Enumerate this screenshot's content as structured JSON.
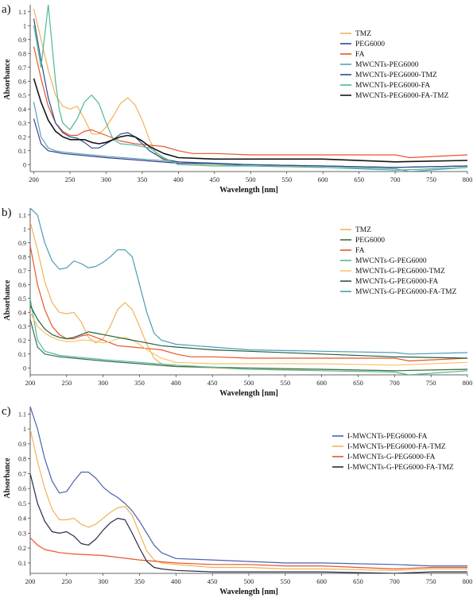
{
  "chart_data": [
    {
      "panel_label": "a)",
      "type": "line",
      "xlabel": "Wavelength [nm]",
      "ylabel": "Absorbance",
      "xlim": [
        195,
        800
      ],
      "ylim": [
        -0.05,
        1.15
      ],
      "xticks": [
        200,
        250,
        300,
        350,
        400,
        450,
        500,
        550,
        600,
        650,
        700,
        750,
        800
      ],
      "yticks": [
        0,
        0.1,
        0.2,
        0.3,
        0.4,
        0.5,
        0.6,
        0.7,
        0.8,
        0.9,
        1,
        1.1
      ],
      "ytick_labels": [
        "0",
        "0.1",
        "0.2",
        "0.3",
        "0.4",
        "0.5",
        "0.6",
        "0.7",
        "0.8",
        "0.9",
        "1",
        "1.1"
      ],
      "legend_position": "top-right",
      "series": [
        {
          "name": "TMZ",
          "color": "#f0b25a",
          "x": [
            200,
            210,
            220,
            230,
            240,
            250,
            260,
            270,
            280,
            290,
            300,
            310,
            320,
            330,
            340,
            350,
            360,
            370,
            380,
            400,
            450,
            500,
            600,
            700,
            800
          ],
          "y": [
            1.12,
            0.9,
            0.68,
            0.5,
            0.42,
            0.4,
            0.42,
            0.33,
            0.22,
            0.22,
            0.27,
            0.35,
            0.44,
            0.48,
            0.43,
            0.32,
            0.18,
            0.07,
            0.03,
            0.01,
            0.0,
            -0.01,
            -0.01,
            -0.02,
            -0.01
          ]
        },
        {
          "name": "PEG6000",
          "color": "#3a3f8f",
          "x": [
            200,
            210,
            220,
            230,
            240,
            260,
            300,
            350,
            400,
            500,
            600,
            700,
            800
          ],
          "y": [
            0.33,
            0.15,
            0.1,
            0.09,
            0.08,
            0.07,
            0.05,
            0.03,
            0.01,
            0.0,
            -0.01,
            -0.02,
            -0.01
          ]
        },
        {
          "name": "FA",
          "color": "#e8552b",
          "x": [
            200,
            210,
            220,
            230,
            240,
            250,
            260,
            270,
            280,
            290,
            300,
            320,
            340,
            360,
            380,
            400,
            420,
            450,
            500,
            600,
            700,
            720,
            800
          ],
          "y": [
            0.85,
            0.62,
            0.42,
            0.3,
            0.24,
            0.21,
            0.21,
            0.24,
            0.25,
            0.23,
            0.21,
            0.17,
            0.15,
            0.14,
            0.13,
            0.1,
            0.08,
            0.08,
            0.07,
            0.07,
            0.07,
            0.05,
            0.07
          ]
        },
        {
          "name": "MWCNTs-PEG6000",
          "color": "#5aa0b8",
          "x": [
            200,
            210,
            220,
            230,
            240,
            260,
            300,
            350,
            400,
            500,
            600,
            700,
            720,
            800
          ],
          "y": [
            0.45,
            0.2,
            0.12,
            0.1,
            0.09,
            0.08,
            0.06,
            0.04,
            0.02,
            -0.01,
            -0.02,
            -0.03,
            -0.05,
            -0.02
          ]
        },
        {
          "name": "MWCNTs-PEG6000-TMZ",
          "color": "#2b4d8c",
          "x": [
            200,
            210,
            220,
            230,
            240,
            250,
            260,
            270,
            280,
            290,
            300,
            310,
            320,
            330,
            340,
            350,
            360,
            380,
            400,
            450,
            500,
            600,
            700,
            800
          ],
          "y": [
            1.05,
            0.75,
            0.48,
            0.3,
            0.23,
            0.2,
            0.19,
            0.16,
            0.12,
            0.12,
            0.15,
            0.18,
            0.22,
            0.23,
            0.2,
            0.15,
            0.1,
            0.04,
            0.02,
            0.01,
            0.0,
            -0.01,
            -0.02,
            -0.01
          ]
        },
        {
          "name": "MWCNTs-PEG6000-FA",
          "color": "#4db89a",
          "x": [
            200,
            210,
            220,
            230,
            235,
            240,
            250,
            260,
            270,
            280,
            290,
            300,
            310,
            320,
            340,
            360,
            380,
            400,
            450,
            500,
            600,
            700,
            800
          ],
          "y": [
            1.0,
            0.7,
            1.15,
            0.6,
            0.4,
            0.3,
            0.25,
            0.33,
            0.45,
            0.5,
            0.44,
            0.3,
            0.18,
            0.15,
            0.14,
            0.12,
            0.05,
            0.0,
            -0.01,
            -0.01,
            -0.02,
            -0.04,
            -0.02
          ]
        },
        {
          "name": "MWCNTs-PEG6000-FA-TMZ",
          "color": "#151515",
          "x": [
            200,
            210,
            220,
            230,
            240,
            250,
            260,
            270,
            280,
            290,
            300,
            310,
            320,
            330,
            340,
            350,
            360,
            380,
            400,
            450,
            500,
            600,
            700,
            800
          ],
          "y": [
            0.62,
            0.45,
            0.32,
            0.24,
            0.2,
            0.18,
            0.18,
            0.18,
            0.16,
            0.15,
            0.16,
            0.18,
            0.2,
            0.21,
            0.2,
            0.17,
            0.13,
            0.08,
            0.05,
            0.04,
            0.04,
            0.04,
            0.02,
            0.03
          ]
        }
      ]
    },
    {
      "panel_label": "b)",
      "type": "line",
      "xlabel": "Wavelength [nm]",
      "ylabel": "Absorbance",
      "xlim": [
        200,
        800
      ],
      "ylim": [
        -0.05,
        1.15
      ],
      "xticks": [
        200,
        250,
        300,
        350,
        400,
        450,
        500,
        550,
        600,
        650,
        700,
        750,
        800
      ],
      "yticks": [
        0,
        0.1,
        0.2,
        0.3,
        0.4,
        0.5,
        0.6,
        0.7,
        0.8,
        0.9,
        1,
        1.1
      ],
      "ytick_labels": [
        "0",
        "0.1",
        "0.2",
        "0.3",
        "0.4",
        "0.5",
        "0.6",
        "0.7",
        "0.8",
        "0.9",
        "1",
        "1.1"
      ],
      "legend_position": "top-right",
      "series": [
        {
          "name": "TMZ",
          "color": "#f0b25a",
          "x": [
            200,
            210,
            220,
            230,
            240,
            250,
            260,
            270,
            280,
            290,
            300,
            310,
            320,
            330,
            340,
            350,
            360,
            370,
            380,
            400,
            450,
            500,
            600,
            700,
            800
          ],
          "y": [
            1.05,
            0.85,
            0.62,
            0.47,
            0.4,
            0.39,
            0.4,
            0.33,
            0.22,
            0.18,
            0.21,
            0.3,
            0.42,
            0.47,
            0.42,
            0.3,
            0.17,
            0.07,
            0.03,
            0.01,
            0.0,
            -0.01,
            -0.01,
            -0.02,
            -0.01
          ]
        },
        {
          "name": "PEG6000",
          "color": "#3a6d4a",
          "x": [
            200,
            210,
            220,
            240,
            260,
            300,
            350,
            400,
            500,
            600,
            700,
            800
          ],
          "y": [
            0.35,
            0.15,
            0.1,
            0.08,
            0.07,
            0.05,
            0.03,
            0.01,
            0.0,
            -0.01,
            -0.02,
            -0.01
          ]
        },
        {
          "name": "FA",
          "color": "#e8552b",
          "x": [
            200,
            210,
            220,
            230,
            240,
            250,
            260,
            270,
            280,
            290,
            300,
            320,
            340,
            360,
            380,
            400,
            420,
            450,
            500,
            600,
            700,
            720,
            800
          ],
          "y": [
            0.88,
            0.6,
            0.42,
            0.3,
            0.24,
            0.21,
            0.21,
            0.23,
            0.24,
            0.22,
            0.2,
            0.16,
            0.15,
            0.14,
            0.13,
            0.1,
            0.08,
            0.08,
            0.07,
            0.07,
            0.07,
            0.05,
            0.07
          ]
        },
        {
          "name": "MWCNTs-G-PEG6000",
          "color": "#4db89a",
          "x": [
            200,
            210,
            220,
            240,
            260,
            300,
            350,
            400,
            500,
            600,
            700,
            720,
            800
          ],
          "y": [
            0.5,
            0.2,
            0.12,
            0.09,
            0.08,
            0.06,
            0.04,
            0.02,
            -0.01,
            -0.02,
            -0.03,
            -0.05,
            -0.02
          ]
        },
        {
          "name": "MWCNTs-G-PEG6000-TMZ",
          "color": "#f5c46a",
          "x": [
            200,
            210,
            220,
            230,
            240,
            250,
            260,
            270,
            280,
            290,
            300,
            310,
            320,
            330,
            340,
            350,
            360,
            380,
            400,
            450,
            500,
            600,
            700,
            800
          ],
          "y": [
            0.4,
            0.3,
            0.25,
            0.22,
            0.2,
            0.19,
            0.19,
            0.2,
            0.2,
            0.19,
            0.18,
            0.19,
            0.21,
            0.22,
            0.2,
            0.17,
            0.13,
            0.07,
            0.04,
            0.03,
            0.03,
            0.03,
            0.02,
            0.04
          ]
        },
        {
          "name": "MWCNTs-G-PEG6000-FA",
          "color": "#1f5e3a",
          "x": [
            200,
            210,
            220,
            230,
            240,
            250,
            260,
            270,
            280,
            290,
            300,
            320,
            340,
            360,
            380,
            400,
            450,
            500,
            600,
            700,
            800
          ],
          "y": [
            0.45,
            0.35,
            0.28,
            0.24,
            0.22,
            0.21,
            0.22,
            0.24,
            0.26,
            0.25,
            0.24,
            0.22,
            0.2,
            0.18,
            0.16,
            0.15,
            0.13,
            0.12,
            0.1,
            0.08,
            0.07
          ]
        },
        {
          "name": "MWCNTs-G-PEG6000-FA-TMZ",
          "color": "#4a9db8",
          "x": [
            200,
            210,
            220,
            230,
            240,
            250,
            260,
            270,
            280,
            290,
            300,
            310,
            320,
            330,
            340,
            350,
            360,
            370,
            380,
            400,
            450,
            500,
            600,
            700,
            720,
            800
          ],
          "y": [
            1.15,
            1.1,
            0.9,
            0.77,
            0.71,
            0.72,
            0.77,
            0.75,
            0.72,
            0.73,
            0.76,
            0.8,
            0.85,
            0.85,
            0.8,
            0.6,
            0.4,
            0.25,
            0.2,
            0.17,
            0.15,
            0.13,
            0.12,
            0.11,
            0.1,
            0.11
          ]
        }
      ]
    },
    {
      "panel_label": "c)",
      "type": "line",
      "xlabel": "Wavelength [nm]",
      "ylabel": "Absorbance",
      "xlim": [
        200,
        800
      ],
      "ylim": [
        0.03,
        1.15
      ],
      "xticks": [
        200,
        250,
        300,
        350,
        400,
        450,
        500,
        550,
        600,
        650,
        700,
        750,
        800
      ],
      "yticks": [
        0.1,
        0.2,
        0.3,
        0.4,
        0.5,
        0.6,
        0.7,
        0.8,
        0.9,
        1,
        1.1
      ],
      "ytick_labels": [
        "0.1",
        "0.2",
        "0.3",
        "0.4",
        "0.5",
        "0.6",
        "0.7",
        "0.8",
        "0.9",
        "1",
        "1.1"
      ],
      "legend_position": "top-right",
      "series": [
        {
          "name": "I-MWCNTs-PEG6000-FA",
          "color": "#4a62b0",
          "x": [
            200,
            210,
            220,
            230,
            240,
            250,
            260,
            270,
            280,
            290,
            300,
            310,
            320,
            330,
            340,
            350,
            360,
            370,
            380,
            400,
            450,
            500,
            550,
            600,
            700,
            750,
            800
          ],
          "y": [
            1.15,
            1.0,
            0.8,
            0.65,
            0.57,
            0.58,
            0.65,
            0.71,
            0.71,
            0.67,
            0.61,
            0.57,
            0.54,
            0.5,
            0.45,
            0.38,
            0.3,
            0.22,
            0.17,
            0.13,
            0.12,
            0.11,
            0.1,
            0.1,
            0.09,
            0.08,
            0.08
          ]
        },
        {
          "name": "I-MWCNTs-PEG6000-FA-TMZ",
          "color": "#f0b25a",
          "x": [
            200,
            210,
            220,
            230,
            240,
            250,
            260,
            270,
            280,
            290,
            300,
            310,
            320,
            330,
            340,
            350,
            360,
            370,
            380,
            400,
            450,
            500,
            550,
            600,
            700,
            750,
            800
          ],
          "y": [
            1.0,
            0.78,
            0.6,
            0.46,
            0.39,
            0.39,
            0.4,
            0.36,
            0.34,
            0.36,
            0.4,
            0.44,
            0.47,
            0.48,
            0.42,
            0.3,
            0.18,
            0.12,
            0.1,
            0.09,
            0.07,
            0.07,
            0.06,
            0.06,
            0.05,
            0.06,
            0.06
          ]
        },
        {
          "name": "I-MWCNTs-G-PEG6000-FA",
          "color": "#e8552b",
          "x": [
            200,
            210,
            220,
            230,
            240,
            260,
            300,
            350,
            400,
            450,
            500,
            550,
            600,
            700,
            750,
            800
          ],
          "y": [
            0.27,
            0.22,
            0.19,
            0.18,
            0.17,
            0.16,
            0.15,
            0.12,
            0.1,
            0.09,
            0.09,
            0.08,
            0.08,
            0.06,
            0.07,
            0.07
          ]
        },
        {
          "name": "I-MWCNTs-G-PEG6000-FA-TMZ",
          "color": "#262a4a",
          "x": [
            200,
            210,
            220,
            230,
            240,
            250,
            260,
            270,
            280,
            290,
            300,
            310,
            320,
            330,
            340,
            350,
            360,
            370,
            380,
            400,
            450,
            500,
            550,
            600,
            700,
            750,
            800
          ],
          "y": [
            0.7,
            0.5,
            0.38,
            0.31,
            0.3,
            0.31,
            0.28,
            0.23,
            0.22,
            0.26,
            0.32,
            0.37,
            0.4,
            0.39,
            0.3,
            0.2,
            0.11,
            0.07,
            0.06,
            0.05,
            0.04,
            0.04,
            0.04,
            0.04,
            0.03,
            0.04,
            0.04
          ]
        }
      ]
    }
  ]
}
